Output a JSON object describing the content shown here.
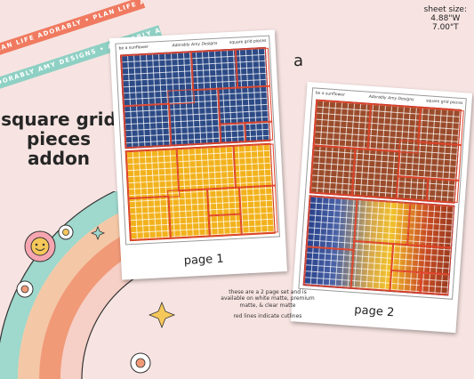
{
  "ribbons": {
    "top": "PLAN LIFE ADORABLY • PLAN LIFE ADORABLY",
    "bottom": "ADORABLY AMY DESIGNS • ADORABLY AMY DESIGNS"
  },
  "sheet_size": {
    "label": "sheet size:",
    "width": "4.88\"W",
    "height": "7.00\"T"
  },
  "marker": "a",
  "title": {
    "line1": "square grid",
    "line2": "pieces",
    "line3": "addon"
  },
  "sheets": [
    {
      "header_left": "be a sunflower",
      "header_mid": "Adorably Amy Designs",
      "header_right": "square grid pieces",
      "label": "page 1"
    },
    {
      "header_left": "be a sunflower",
      "header_mid": "Adorably Amy Designs",
      "header_right": "square grid pieces",
      "label": "page 2"
    }
  ],
  "note": {
    "line1": "these are a 2 page set and is available on white matte, premium matte, & clear matte",
    "line2": "red lines indicate cutlines"
  },
  "colors": {
    "background": "#f7e4e2",
    "navy": "#2c4a86",
    "gold": "#f2b21c",
    "rust": "#9a4b2a",
    "cutline": "#e0432a",
    "ribbon_coral": "#f07a60",
    "ribbon_teal": "#8fd0c4"
  }
}
